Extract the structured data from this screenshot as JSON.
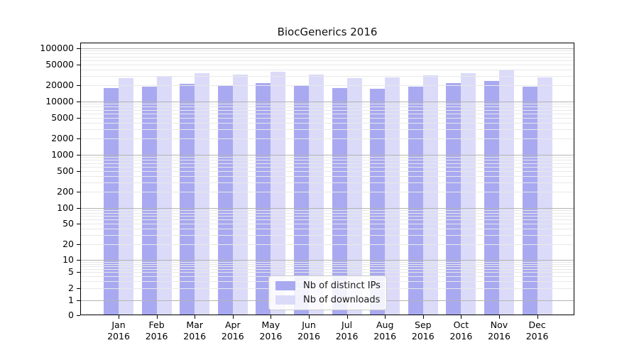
{
  "title": "BiocGenerics 2016",
  "colors": {
    "ips": "#a9a9f1",
    "downloads": "#dbdbf9",
    "grid_major": "#b3b3b3",
    "grid_minor": "#e8e8e8",
    "axis": "#000000",
    "legend_border": "#cccccc"
  },
  "legend": {
    "items": [
      {
        "label": "Nb of distinct IPs",
        "series_key": "ips"
      },
      {
        "label": "Nb of downloads",
        "series_key": "downloads"
      }
    ]
  },
  "x_axis": {
    "months": [
      "Jan",
      "Feb",
      "Mar",
      "Apr",
      "May",
      "Jun",
      "Jul",
      "Aug",
      "Sep",
      "Oct",
      "Nov",
      "Dec"
    ],
    "year": "2016"
  },
  "y_axis": {
    "tick_values": [
      0,
      1,
      2,
      5,
      10,
      20,
      50,
      100,
      200,
      500,
      1000,
      2000,
      5000,
      10000,
      20000,
      50000,
      100000
    ]
  },
  "chart_data": {
    "type": "bar",
    "title": "BiocGenerics 2016",
    "categories": [
      "Jan 2016",
      "Feb 2016",
      "Mar 2016",
      "Apr 2016",
      "May 2016",
      "Jun 2016",
      "Jul 2016",
      "Aug 2016",
      "Sep 2016",
      "Oct 2016",
      "Nov 2016",
      "Dec 2016"
    ],
    "series": [
      {
        "name": "Nb of distinct IPs",
        "values": [
          17700,
          18900,
          21800,
          20300,
          22300,
          19600,
          18000,
          17300,
          19300,
          22300,
          24000,
          19000
        ]
      },
      {
        "name": "Nb of downloads",
        "values": [
          27800,
          29600,
          34600,
          32000,
          36500,
          32000,
          27500,
          28200,
          31000,
          34600,
          38300,
          28400
        ]
      }
    ],
    "yscale": "symlog",
    "ylim": [
      0,
      130000
    ],
    "y_ticks": [
      0,
      1,
      2,
      5,
      10,
      20,
      50,
      100,
      200,
      500,
      1000,
      2000,
      5000,
      10000,
      20000,
      50000,
      100000
    ],
    "grid": true,
    "grid_which": "both",
    "legend_position": "lower center"
  }
}
